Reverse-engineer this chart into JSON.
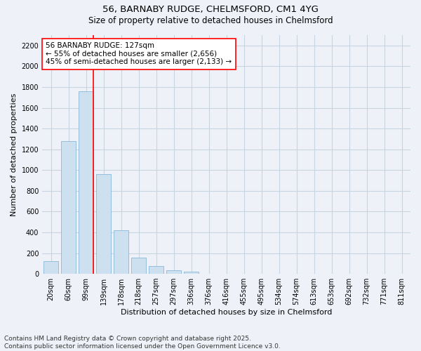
{
  "title1": "56, BARNABY RUDGE, CHELMSFORD, CM1 4YG",
  "title2": "Size of property relative to detached houses in Chelmsford",
  "xlabel": "Distribution of detached houses by size in Chelmsford",
  "ylabel": "Number of detached properties",
  "categories": [
    "20sqm",
    "60sqm",
    "99sqm",
    "139sqm",
    "178sqm",
    "218sqm",
    "257sqm",
    "297sqm",
    "336sqm",
    "376sqm",
    "416sqm",
    "455sqm",
    "495sqm",
    "534sqm",
    "574sqm",
    "613sqm",
    "653sqm",
    "692sqm",
    "732sqm",
    "771sqm",
    "811sqm"
  ],
  "values": [
    120,
    1280,
    1760,
    960,
    420,
    155,
    75,
    35,
    20,
    0,
    0,
    0,
    0,
    0,
    0,
    0,
    0,
    0,
    0,
    0,
    0
  ],
  "bar_color": "#cce0f0",
  "bar_edge_color": "#88b8d8",
  "vline_x_index": 2,
  "vline_color": "red",
  "annotation_text": "56 BARNABY RUDGE: 127sqm\n← 55% of detached houses are smaller (2,656)\n45% of semi-detached houses are larger (2,133) →",
  "annotation_box_facecolor": "white",
  "annotation_box_edgecolor": "red",
  "ylim": [
    0,
    2300
  ],
  "yticks": [
    0,
    200,
    400,
    600,
    800,
    1000,
    1200,
    1400,
    1600,
    1800,
    2000,
    2200
  ],
  "grid_color": "#c8d4e0",
  "plot_bg_color": "#eef2f8",
  "fig_bg_color": "#eef2f8",
  "footnote": "Contains HM Land Registry data © Crown copyright and database right 2025.\nContains public sector information licensed under the Open Government Licence v3.0.",
  "title_fontsize": 9.5,
  "subtitle_fontsize": 8.5,
  "tick_fontsize": 7,
  "ylabel_fontsize": 8,
  "xlabel_fontsize": 8,
  "annotation_fontsize": 7.5,
  "footnote_fontsize": 6.5
}
